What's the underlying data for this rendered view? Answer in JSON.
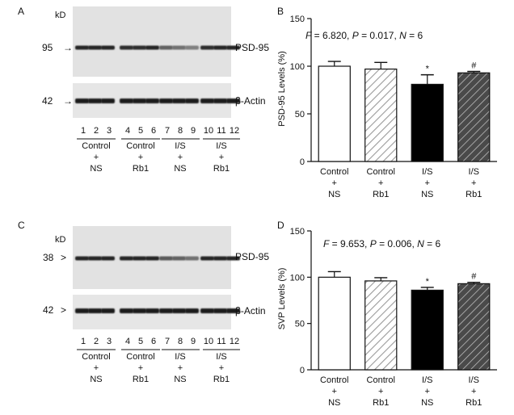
{
  "colors": {
    "ink": "#111111",
    "blot_bg": "#e4e4e4",
    "band": "#1e1e1e",
    "open_bar": "#ffffff",
    "solid_bar": "#000000",
    "dark_hatch_bar": "#555555"
  },
  "panels": {
    "A": {
      "letter": "A",
      "kd_label": "kD",
      "marker_top": "95",
      "marker_top_arrow": "→",
      "marker_bottom": "42",
      "marker_bottom_arrow": "→",
      "band_top": "PSD-95",
      "band_bottom": "β-Actin",
      "lanes": [
        "1",
        "2",
        "3",
        "4",
        "5",
        "6",
        "7",
        "8",
        "9",
        "10",
        "11",
        "12"
      ],
      "groups": [
        {
          "l1": "Control",
          "l2": "+",
          "l3": "NS"
        },
        {
          "l1": "Control",
          "l2": "+",
          "l3": "Rb1"
        },
        {
          "l1": "I/S",
          "l2": "+",
          "l3": "NS"
        },
        {
          "l1": "I/S",
          "l2": "+",
          "l3": "Rb1"
        }
      ],
      "band_intensity_top": [
        0.95,
        0.95,
        0.95,
        0.9,
        0.9,
        0.95,
        0.55,
        0.45,
        0.35,
        0.9,
        0.95,
        0.95
      ],
      "band_intensity_bottom": [
        1,
        1,
        1,
        1,
        1,
        1,
        1,
        1,
        1,
        1,
        1,
        1
      ]
    },
    "C": {
      "letter": "C",
      "kd_label": "kD",
      "marker_top": "38",
      "marker_top_arrow": ">",
      "marker_bottom": "42",
      "marker_bottom_arrow": ">",
      "band_top": "PSD-95",
      "band_bottom": "β-Actin",
      "lanes": [
        "1",
        "2",
        "3",
        "4",
        "5",
        "6",
        "7",
        "8",
        "9",
        "10",
        "11",
        "12"
      ],
      "groups": [
        {
          "l1": "Control",
          "l2": "+",
          "l3": "NS"
        },
        {
          "l1": "Control",
          "l2": "+",
          "l3": "Rb1"
        },
        {
          "l1": "I/S",
          "l2": "+",
          "l3": "NS"
        },
        {
          "l1": "I/S",
          "l2": "+",
          "l3": "Rb1"
        }
      ],
      "band_intensity_top": [
        0.95,
        0.95,
        0.95,
        0.95,
        0.95,
        0.95,
        0.6,
        0.55,
        0.45,
        0.95,
        0.95,
        0.95
      ],
      "band_intensity_bottom": [
        1,
        1,
        1,
        1,
        1,
        1,
        1,
        1,
        1,
        1,
        1,
        1
      ]
    }
  },
  "chart_data": [
    {
      "panel": "B",
      "type": "bar",
      "ylabel": "PSD-95 Levels (%)",
      "ylim": [
        0,
        150
      ],
      "yticks": [
        0,
        50,
        100,
        150
      ],
      "stat_prefix_F": "F",
      "stat_F": " = 6.820, ",
      "stat_prefix_P": "P",
      "stat_P": " = 0.017, ",
      "stat_prefix_N": "N",
      "stat_N": " = 6",
      "categories": [
        {
          "l1": "Control",
          "l2": "+",
          "l3": "NS"
        },
        {
          "l1": "Control",
          "l2": "+",
          "l3": "Rb1"
        },
        {
          "l1": "I/S",
          "l2": "+",
          "l3": "NS"
        },
        {
          "l1": "I/S",
          "l2": "+",
          "l3": "Rb1"
        }
      ],
      "values": [
        100,
        97,
        81,
        93
      ],
      "errors": [
        5,
        7,
        10,
        1.5
      ],
      "markers": [
        "",
        "",
        "*",
        "#"
      ],
      "styles": [
        "open",
        "light-hatch",
        "solid",
        "dark-hatch"
      ]
    },
    {
      "panel": "D",
      "type": "bar",
      "ylabel": "SVP Levels (%)",
      "ylim": [
        0,
        150
      ],
      "yticks": [
        0,
        50,
        100,
        150
      ],
      "stat_prefix_F": "F",
      "stat_F": " = 9.653, ",
      "stat_prefix_P": "P",
      "stat_P": " = 0.006, ",
      "stat_prefix_N": "N",
      "stat_N": " = 6",
      "categories": [
        {
          "l1": "Control",
          "l2": "+",
          "l3": "NS"
        },
        {
          "l1": "Control",
          "l2": "+",
          "l3": "Rb1"
        },
        {
          "l1": "I/S",
          "l2": "+",
          "l3": "NS"
        },
        {
          "l1": "I/S",
          "l2": "+",
          "l3": "Rb1"
        }
      ],
      "values": [
        100,
        96,
        86,
        93
      ],
      "errors": [
        6,
        3.5,
        3,
        1.5
      ],
      "markers": [
        "",
        "",
        "*",
        "#"
      ],
      "styles": [
        "open",
        "light-hatch",
        "solid",
        "dark-hatch"
      ]
    }
  ]
}
